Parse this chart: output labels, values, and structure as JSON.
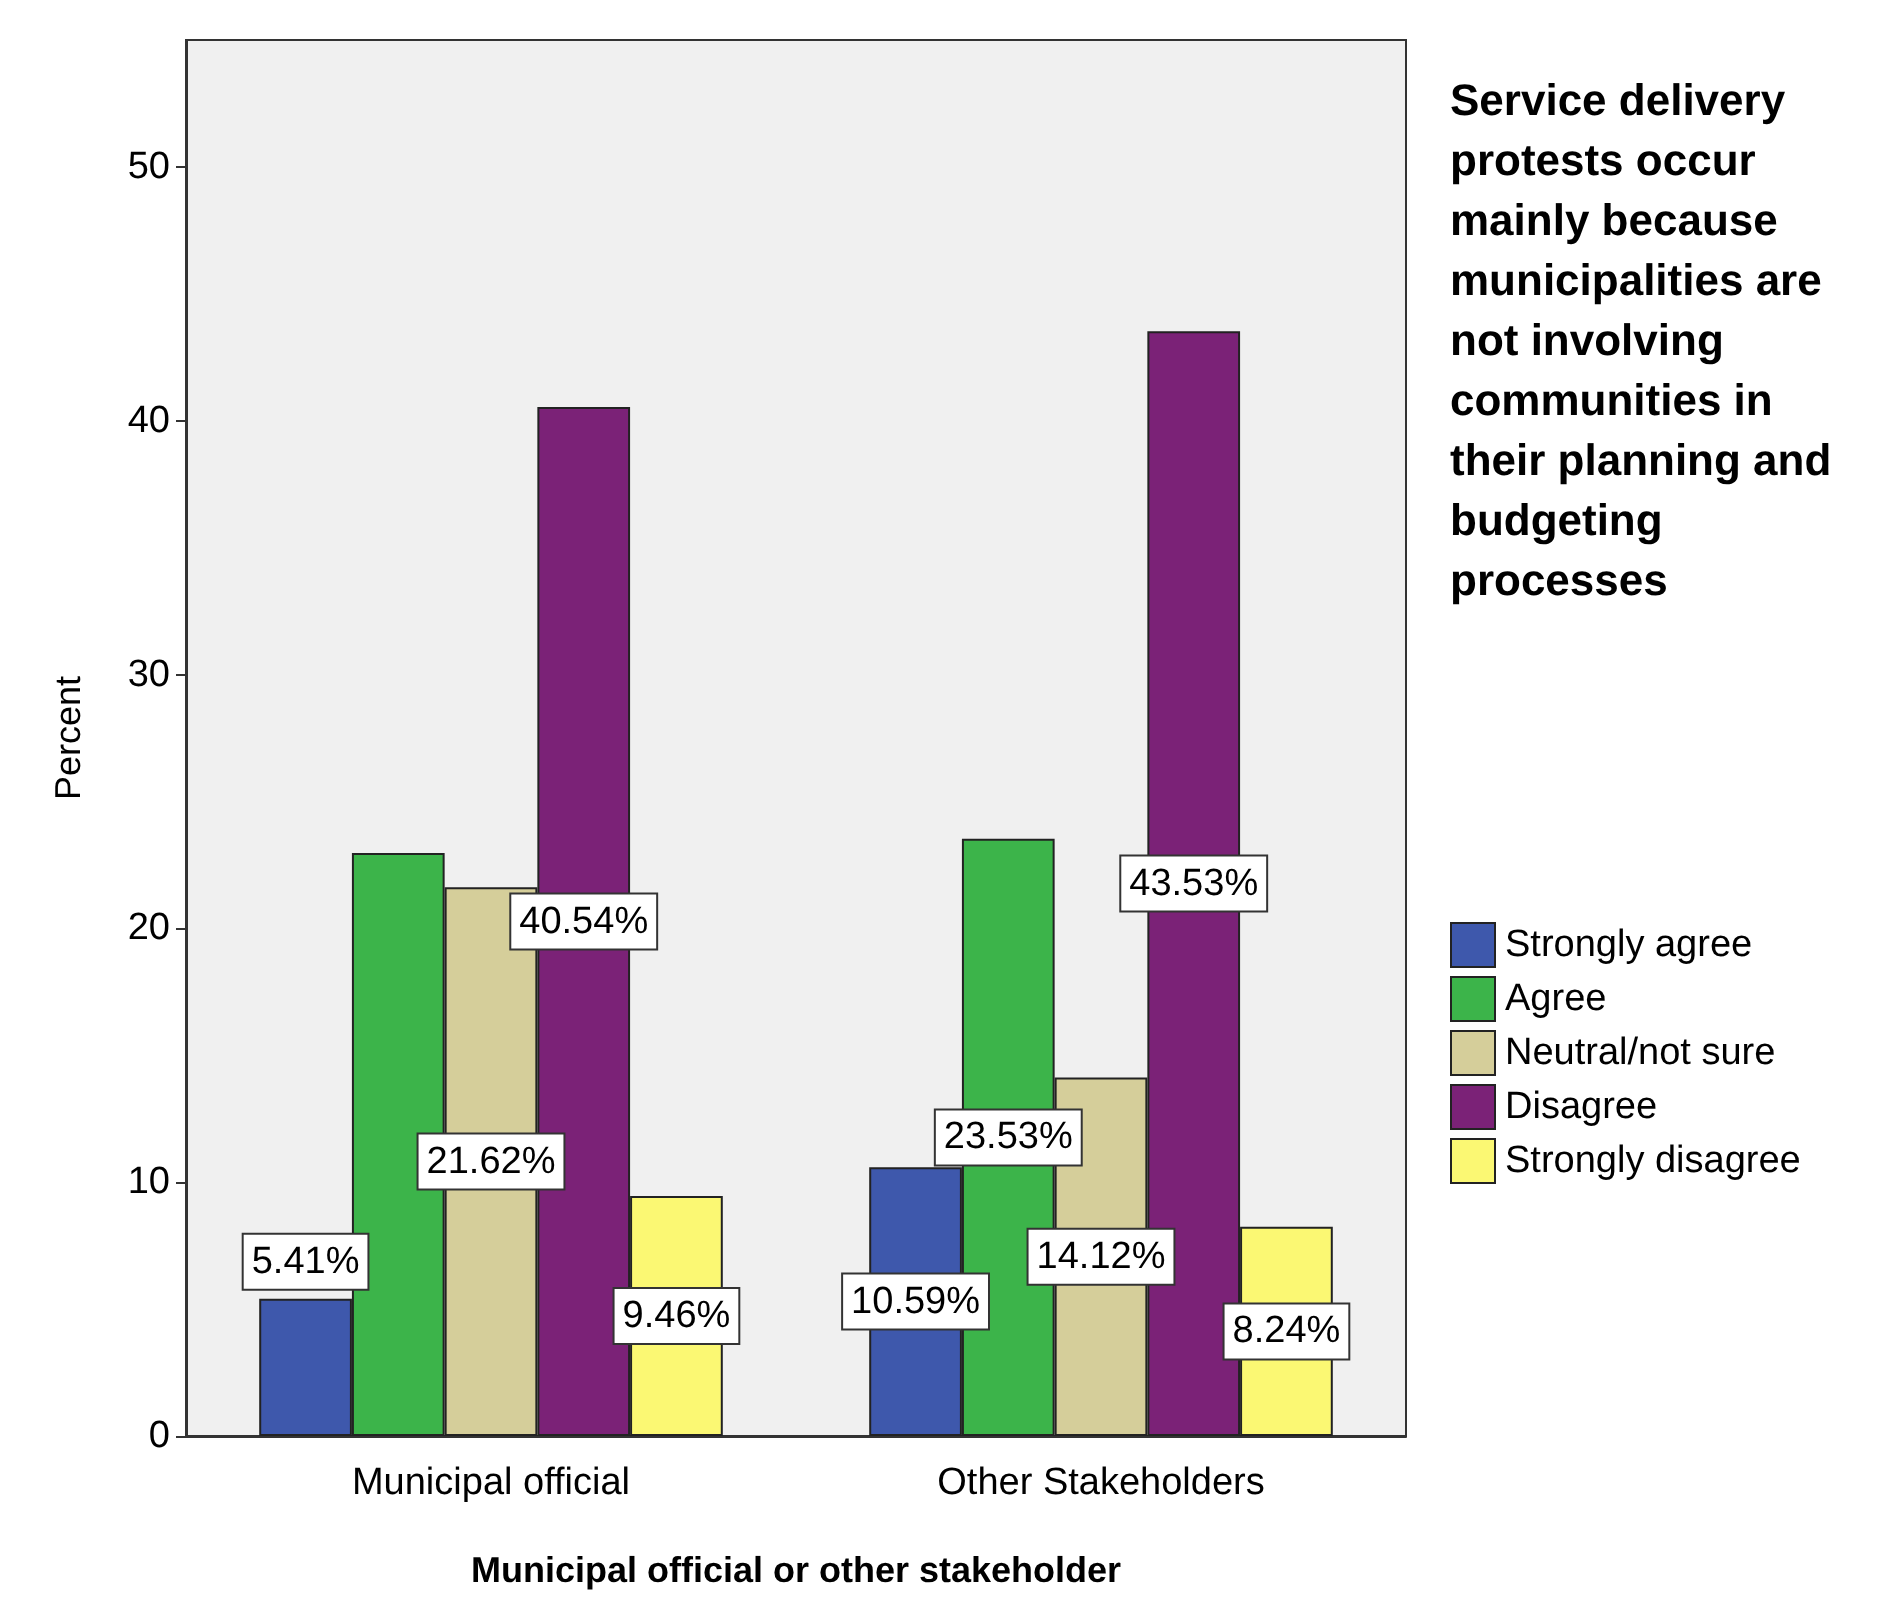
{
  "chart_data": {
    "type": "bar",
    "xlabel": "Municipal official or other stakeholder",
    "ylabel": "Percent",
    "legend_title": "Service delivery protests occur mainly because municipalities are not involving communities in their planning and budgeting processes",
    "categories": [
      "Municipal official",
      "Other Stakeholders"
    ],
    "series": [
      {
        "name": "Strongly agree",
        "color": "#3e58ac",
        "values": [
          5.41,
          10.59
        ],
        "value_labels": [
          "5.41%",
          "10.59%"
        ]
      },
      {
        "name": "Agree",
        "color": "#3cb44a",
        "values": [
          22.97,
          23.53
        ],
        "value_labels": [
          null,
          "23.53%"
        ]
      },
      {
        "name": "Neutral/not sure",
        "color": "#d5ce9a",
        "values": [
          21.62,
          14.12
        ],
        "value_labels": [
          "21.62%",
          "14.12%"
        ]
      },
      {
        "name": "Disagree",
        "color": "#7b2277",
        "values": [
          40.54,
          43.53
        ],
        "value_labels": [
          "40.54%",
          "43.53%"
        ]
      },
      {
        "name": "Strongly disagree",
        "color": "#fbf873",
        "values": [
          9.46,
          8.24
        ],
        "value_labels": [
          "9.46%",
          "8.24%"
        ]
      }
    ],
    "ylim": [
      0,
      55
    ],
    "yticks": [
      0,
      10,
      20,
      30,
      40,
      50
    ],
    "grid": false,
    "legend": "right"
  }
}
